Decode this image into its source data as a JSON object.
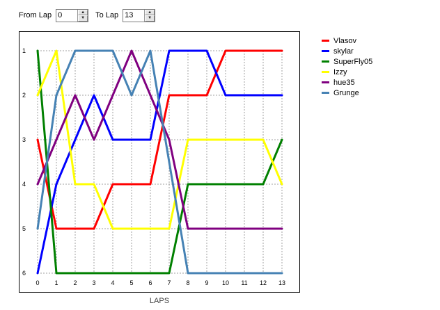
{
  "controls": {
    "from_label": "From Lap",
    "from_value": "0",
    "to_label": "To Lap",
    "to_value": "13",
    "up_arrow": "▲",
    "down_arrow": "▼"
  },
  "chart_data": {
    "type": "line",
    "title": "",
    "xlabel": "LAPS",
    "ylabel": "",
    "x": [
      0,
      1,
      2,
      3,
      4,
      5,
      6,
      7,
      8,
      9,
      10,
      11,
      12,
      13
    ],
    "xlim": [
      0,
      13
    ],
    "ylim": [
      1,
      6
    ],
    "y_inverted": true,
    "x_ticks": [
      "0",
      "1",
      "2",
      "3",
      "4",
      "5",
      "6",
      "7",
      "8",
      "9",
      "10",
      "11",
      "12",
      "13"
    ],
    "y_ticks": [
      "1",
      "2",
      "3",
      "4",
      "5",
      "6"
    ],
    "grid": true,
    "legend_position": "right",
    "series": [
      {
        "name": "Vlasov",
        "color": "#ff0000",
        "points": [
          [
            0,
            3
          ],
          [
            1,
            5
          ],
          [
            3,
            5
          ],
          [
            4,
            4
          ],
          [
            6,
            4
          ],
          [
            7,
            2
          ],
          [
            9,
            2
          ],
          [
            10,
            1
          ],
          [
            13,
            1
          ]
        ]
      },
      {
        "name": "skylar",
        "color": "#0000ff",
        "points": [
          [
            0,
            6
          ],
          [
            1,
            4
          ],
          [
            3,
            2
          ],
          [
            4,
            3
          ],
          [
            6,
            3
          ],
          [
            7,
            1
          ],
          [
            9,
            1
          ],
          [
            10,
            2
          ],
          [
            13,
            2
          ]
        ]
      },
      {
        "name": "SuperFly05",
        "color": "#008000",
        "points": [
          [
            0,
            1
          ],
          [
            1,
            6
          ],
          [
            7,
            6
          ],
          [
            8,
            4
          ],
          [
            12,
            4
          ],
          [
            13,
            3
          ]
        ]
      },
      {
        "name": "Izzy",
        "color": "#ffff00",
        "points": [
          [
            0,
            2
          ],
          [
            1,
            1
          ],
          [
            2,
            4
          ],
          [
            3,
            4
          ],
          [
            4,
            5
          ],
          [
            7,
            5
          ],
          [
            8,
            3
          ],
          [
            12,
            3
          ],
          [
            13,
            4
          ]
        ]
      },
      {
        "name": "hue35",
        "color": "#800080",
        "points": [
          [
            0,
            4
          ],
          [
            2,
            2
          ],
          [
            3,
            3
          ],
          [
            5,
            1
          ],
          [
            7,
            3
          ],
          [
            8,
            5
          ],
          [
            13,
            5
          ]
        ]
      },
      {
        "name": "Grunge",
        "color": "#4682b4",
        "points": [
          [
            0,
            5
          ],
          [
            1,
            2
          ],
          [
            2,
            1
          ],
          [
            4,
            1
          ],
          [
            5,
            2
          ],
          [
            6,
            1
          ],
          [
            8,
            6
          ],
          [
            13,
            6
          ]
        ]
      }
    ]
  }
}
